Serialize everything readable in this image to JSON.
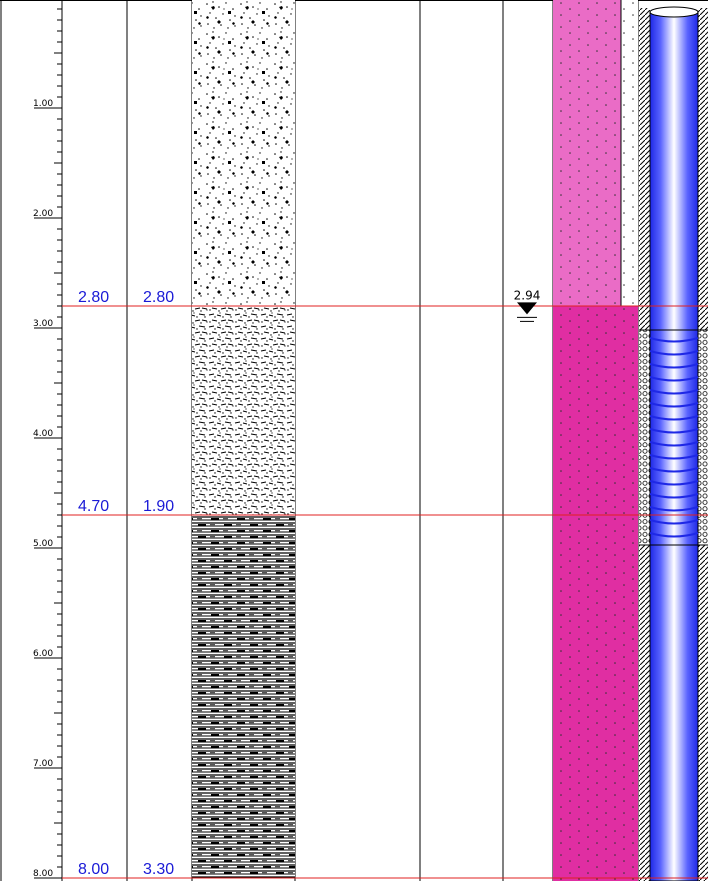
{
  "log": {
    "depth_range": [
      0,
      8.0
    ],
    "depth_tick_labels": [
      "1.00",
      "2.00",
      "3.00",
      "4.00",
      "5.00",
      "6.00",
      "7.00",
      "8.00"
    ],
    "colors": {
      "boundary_line": "#e02020",
      "value_text": "#1a1ad6",
      "pipe_blue": "#1e28e6",
      "fill_light_magenta": "#ea6cc6",
      "fill_magenta": "#e02ea2"
    },
    "layers": [
      {
        "bottom": "2.80",
        "thickness": "2.80",
        "pattern": "gravel-sand"
      },
      {
        "bottom": "4.70",
        "thickness": "1.90",
        "pattern": "silty-sand"
      },
      {
        "bottom": "8.00",
        "thickness": "3.30",
        "pattern": "clay-shale"
      }
    ],
    "water_level": {
      "value": "2.94",
      "symbol": "water-level-triangle"
    },
    "backfill": {
      "light_top": 0,
      "light_bottom": 2.8
    },
    "well": {
      "screen_top": 2.8,
      "screen_bottom": 5.0,
      "icons": [
        "pipe-icon",
        "screen-ring-icon",
        "gravel-pack-icon",
        "hatch-grout-icon"
      ]
    }
  }
}
